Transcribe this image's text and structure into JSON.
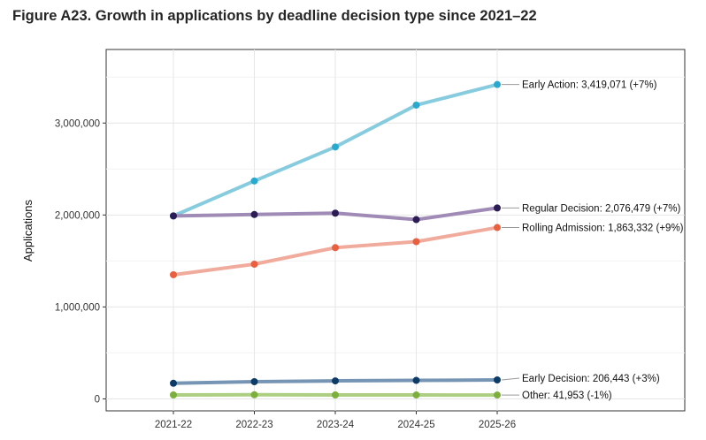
{
  "figure_title": "Figure A23. Growth in applications by deadline decision type since 2021–22",
  "chart_data": {
    "type": "line",
    "title": "Figure A23. Growth in applications by deadline decision type since 2021–22",
    "xlabel": "",
    "ylabel": "Applications",
    "categories": [
      "2021-22",
      "2022-23",
      "2023-24",
      "2024-25",
      "2025-26"
    ],
    "ylim": [
      -130000,
      3800000
    ],
    "yticks": [
      0,
      1000000,
      2000000,
      3000000
    ],
    "ytick_labels": [
      "0",
      "1,000,000",
      "2,000,000",
      "3,000,000"
    ],
    "grid": true,
    "series": [
      {
        "name": "Early Action",
        "label": "Early Action: 3,419,071 (+7%)",
        "values": [
          1990000,
          2370000,
          2740000,
          3195000,
          3419071
        ],
        "line_color": "#7fc9dc",
        "point_color": "#2aa9cf"
      },
      {
        "name": "Regular Decision",
        "label": "Regular Decision: 2,076,479 (+7%)",
        "values": [
          1990000,
          2005000,
          2020000,
          1950000,
          2076479
        ],
        "line_color": "#9b85b3",
        "point_color": "#2b1c56"
      },
      {
        "name": "Rolling Admission",
        "label": "Rolling Admission: 1,863,332 (+9%)",
        "values": [
          1350000,
          1465000,
          1645000,
          1710000,
          1863332
        ],
        "line_color": "#f0a798",
        "point_color": "#e8603f"
      },
      {
        "name": "Early Decision",
        "label": "Early Decision: 206,443 (+3%)",
        "values": [
          170000,
          187000,
          196000,
          201000,
          206443
        ],
        "line_color": "#6f8fb0",
        "point_color": "#0d3b68"
      },
      {
        "name": "Other",
        "label": "Other: 41,953 (-1%)",
        "values": [
          43000,
          45000,
          43000,
          42500,
          41953
        ],
        "line_color": "#a9cc7a",
        "point_color": "#7caf3b"
      }
    ]
  }
}
